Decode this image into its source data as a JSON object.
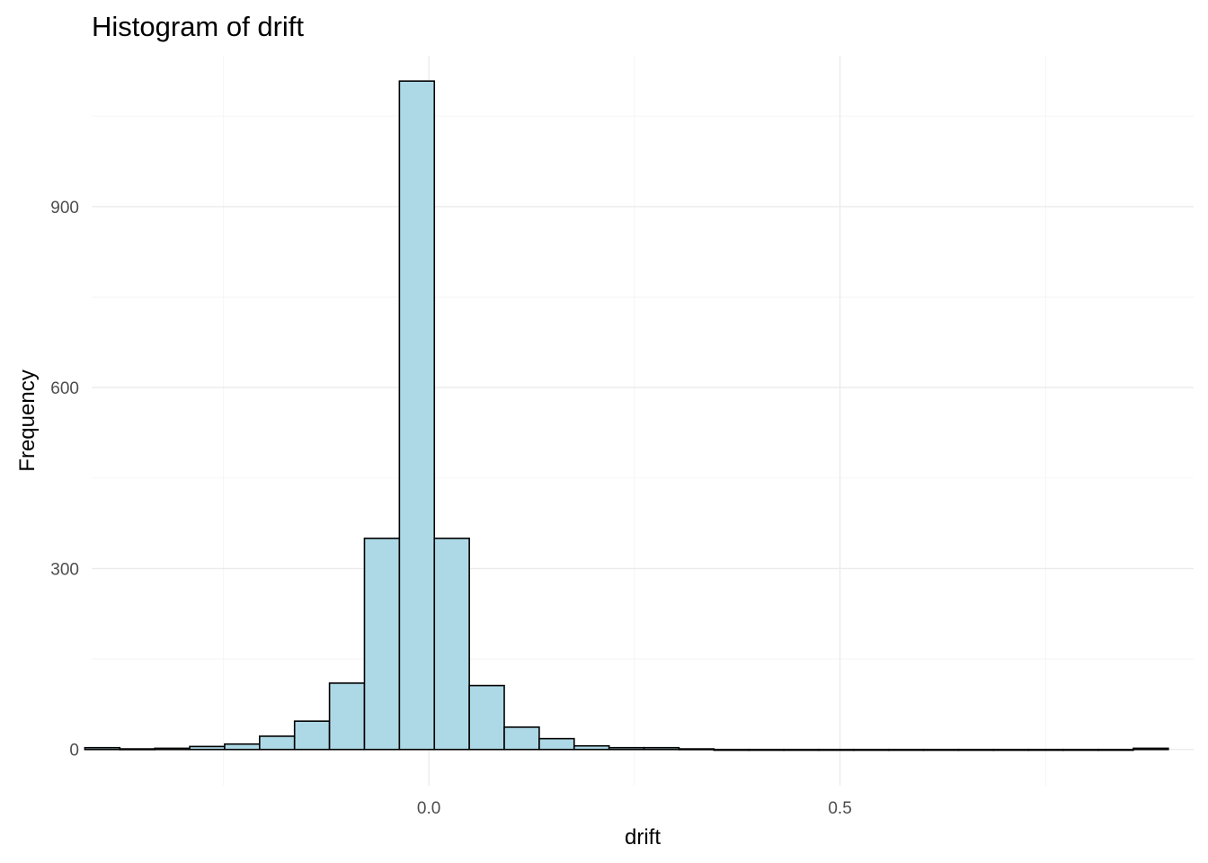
{
  "chart_data": {
    "type": "bar",
    "title": "Histogram of drift",
    "xlabel": "drift",
    "ylabel": "Frequency",
    "bar_color": "#add8e6",
    "bar_outline": "#000000",
    "binwidth": 0.0425,
    "xlim": [
      -0.41,
      0.93
    ],
    "ylim": [
      -60,
      1150
    ],
    "x_ticks": [
      0.0,
      0.5
    ],
    "x_tick_labels": [
      "0.0",
      "0.5"
    ],
    "x_minor_ticks": [
      -0.25,
      0.25,
      0.75
    ],
    "y_ticks": [
      0,
      300,
      600,
      900
    ],
    "y_tick_labels": [
      "0",
      "300",
      "600",
      "900"
    ],
    "y_minor_ticks": [
      150,
      450,
      750,
      1050
    ],
    "grid": true,
    "legend": "none",
    "bins": [
      {
        "x": -0.4183,
        "count": 3
      },
      {
        "x": -0.3758,
        "count": 1
      },
      {
        "x": -0.3333,
        "count": 2
      },
      {
        "x": -0.2908,
        "count": 5
      },
      {
        "x": -0.2483,
        "count": 9
      },
      {
        "x": -0.2058,
        "count": 22
      },
      {
        "x": -0.1633,
        "count": 47
      },
      {
        "x": -0.1208,
        "count": 110
      },
      {
        "x": -0.0783,
        "count": 350
      },
      {
        "x": -0.0358,
        "count": 1108
      },
      {
        "x": 0.0067,
        "count": 350
      },
      {
        "x": 0.0492,
        "count": 106
      },
      {
        "x": 0.0917,
        "count": 37
      },
      {
        "x": 0.1342,
        "count": 18
      },
      {
        "x": 0.1767,
        "count": 6
      },
      {
        "x": 0.2192,
        "count": 3
      },
      {
        "x": 0.2617,
        "count": 3
      },
      {
        "x": 0.3042,
        "count": 1
      },
      {
        "x": 0.3467,
        "count": 0
      },
      {
        "x": 0.3892,
        "count": 0
      },
      {
        "x": 0.4317,
        "count": 0
      },
      {
        "x": 0.4742,
        "count": 0
      },
      {
        "x": 0.5167,
        "count": 0
      },
      {
        "x": 0.5592,
        "count": 0
      },
      {
        "x": 0.6017,
        "count": 0
      },
      {
        "x": 0.6442,
        "count": 0
      },
      {
        "x": 0.6867,
        "count": 0
      },
      {
        "x": 0.7292,
        "count": 0
      },
      {
        "x": 0.7717,
        "count": 0
      },
      {
        "x": 0.8142,
        "count": 0
      },
      {
        "x": 0.8567,
        "count": 2
      }
    ]
  }
}
